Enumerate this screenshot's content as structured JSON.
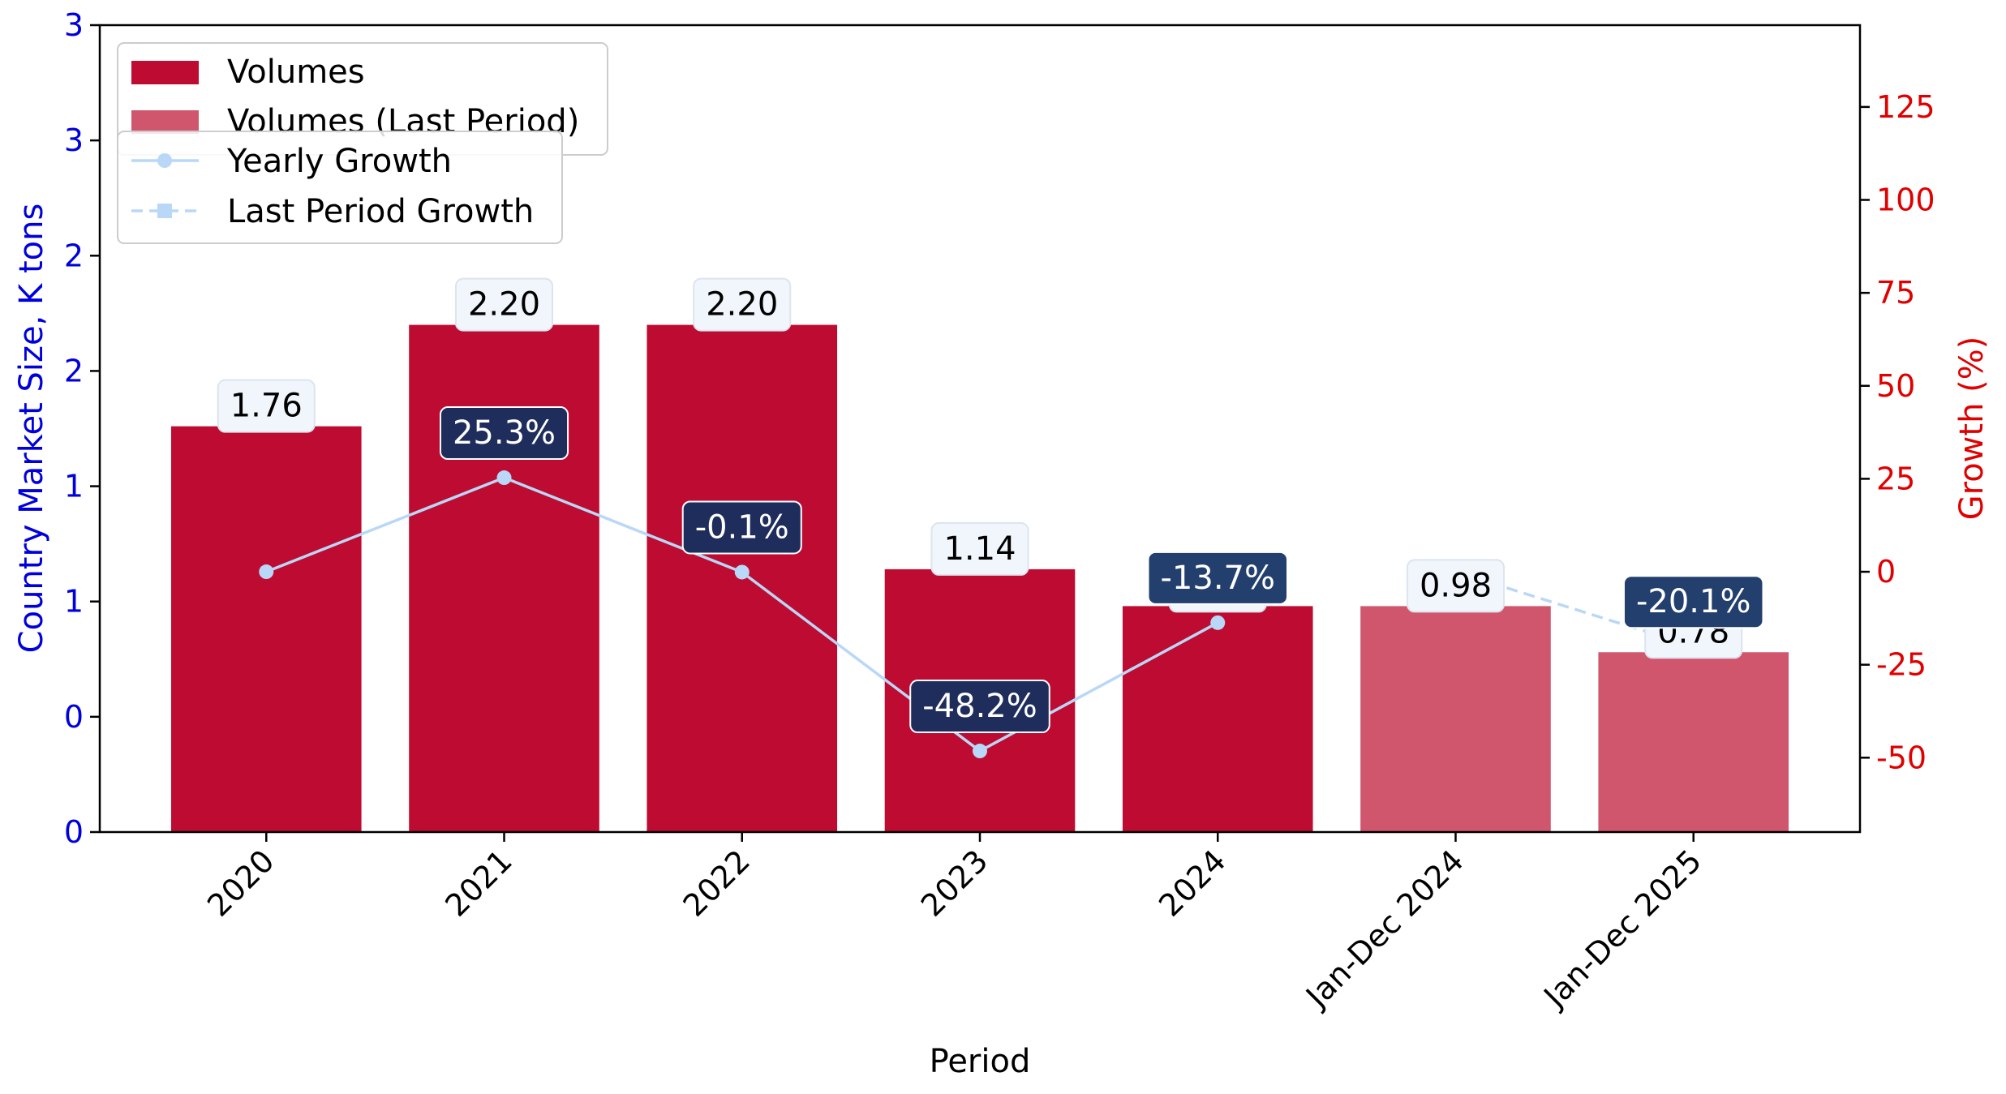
{
  "chart_data": {
    "type": "bar",
    "xlabel": "Period",
    "ylabel": "Country Market Size, K tons",
    "y2label": "Growth (%)",
    "categories": [
      "2020",
      "2021",
      "2022",
      "2023",
      "2024",
      "Jan-Dec 2024",
      "Jan-Dec 2025"
    ],
    "y_ticks": [
      0,
      0.5,
      1.0,
      1.5,
      2.0,
      2.5,
      3.0,
      3.5
    ],
    "y_tick_labels": [
      "0",
      "0",
      "1",
      "1",
      "2",
      "2",
      "3",
      "3"
    ],
    "ylim": [
      0,
      3.5
    ],
    "y2_ticks": [
      -50,
      -25,
      0,
      25,
      50,
      75,
      100,
      125
    ],
    "y2lim": [
      -70,
      147
    ],
    "series": [
      {
        "name": "Volumes",
        "kind": "bar",
        "color": "#be0b31",
        "values": [
          1.76,
          2.2,
          2.2,
          1.14,
          0.98,
          null,
          null
        ],
        "labels": [
          "1.76",
          "2.20",
          "2.20",
          "1.14",
          "0.98",
          null,
          null
        ]
      },
      {
        "name": "Volumes (Last Period)",
        "kind": "bar",
        "color": "#d0566e",
        "values": [
          null,
          null,
          null,
          null,
          null,
          0.98,
          0.78
        ],
        "labels": [
          null,
          null,
          null,
          null,
          null,
          "0.98",
          "0.78"
        ]
      },
      {
        "name": "Yearly Growth",
        "kind": "line",
        "axis": "right",
        "color": "#b9d7f7",
        "values": [
          0,
          25.3,
          -0.1,
          -48.2,
          -13.7,
          null,
          null
        ],
        "labels": [
          null,
          "25.3%",
          "-0.1%",
          "-48.2%",
          "-13.7%",
          null,
          null
        ]
      },
      {
        "name": "Last Period Growth",
        "kind": "line-dashed",
        "axis": "right",
        "color": "#b9d7f7",
        "values": [
          null,
          null,
          null,
          null,
          null,
          0,
          -20.1
        ],
        "labels": [
          null,
          null,
          null,
          null,
          null,
          null,
          "-20.1%"
        ]
      }
    ],
    "legend": [
      "Volumes",
      "Volumes (Last Period)",
      "Yearly Growth",
      "Last Period Growth"
    ],
    "legend_position": "top-left",
    "colors": {
      "left_axis": "#0000dd",
      "right_axis": "#e00000",
      "value_box_fill": "#f1f6fc",
      "growth_box_fill": "#1f2d5c",
      "growth_box_fill_alt": "#233f6e"
    }
  }
}
